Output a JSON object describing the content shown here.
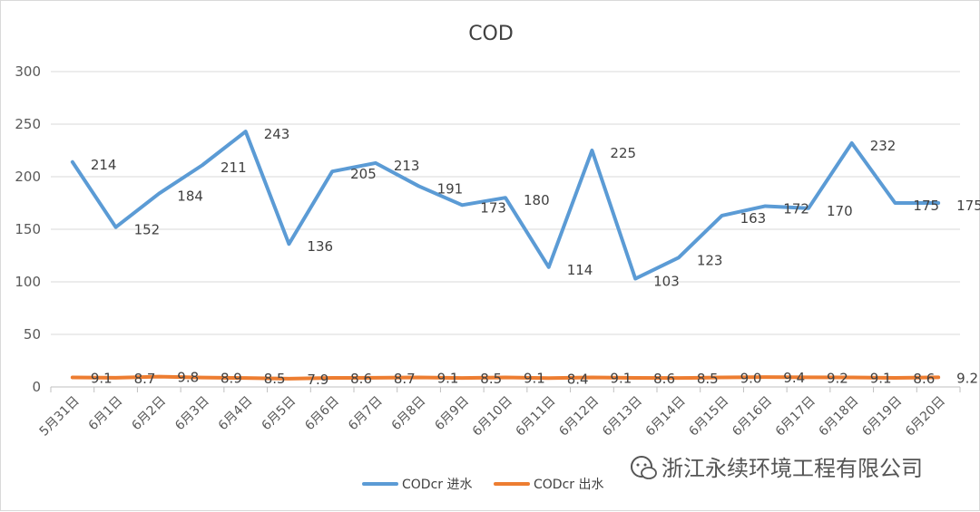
{
  "chart_data": {
    "type": "line",
    "title": "COD",
    "xlabel": "",
    "ylabel": "",
    "ylim": [
      0,
      300
    ],
    "y_ticks": [
      0,
      50,
      100,
      150,
      200,
      250,
      300
    ],
    "grid": true,
    "legend_position": "bottom",
    "categories": [
      "5月31日",
      "6月1日",
      "6月2日",
      "6月3日",
      "6月4日",
      "6月5日",
      "6月6日",
      "6月7日",
      "6月8日",
      "6月9日",
      "6月10日",
      "6月11日",
      "6月12日",
      "6月13日",
      "6月14日",
      "6月15日",
      "6月16日",
      "6月17日",
      "6月18日",
      "6月19日",
      "6月20日"
    ],
    "series": [
      {
        "name": "CODcr 进水",
        "color": "#5b9bd5",
        "values": [
          214,
          152,
          184,
          211,
          243,
          136,
          205,
          213,
          191,
          173,
          180,
          114,
          225,
          103,
          123,
          163,
          172,
          170,
          232,
          175,
          175
        ]
      },
      {
        "name": "CODcr 出水",
        "color": "#ed7d31",
        "values": [
          9.1,
          8.7,
          9.8,
          8.9,
          8.5,
          7.9,
          8.6,
          8.7,
          9.1,
          8.5,
          9.1,
          8.4,
          9.1,
          8.6,
          8.5,
          9.0,
          9.4,
          9.2,
          9.1,
          8.6,
          9.2
        ],
        "labels": [
          "9.1",
          "8.7",
          "9.8",
          "8.9",
          "8.5",
          "7.9",
          "8.6",
          "8.7",
          "9.1",
          "8.5",
          "9.1",
          "8.4",
          "9.1",
          "8.6",
          "8.5",
          "9.0",
          "9.4",
          "9.2",
          "9.1",
          "8.6",
          "9.2"
        ]
      }
    ]
  },
  "watermark": {
    "text": "浙江永续环境工程有限公司",
    "icon": "wechat-icon"
  },
  "colors": {
    "grid": "#d9d9d9",
    "axis": "#bfbfbf",
    "text": "#595959"
  }
}
